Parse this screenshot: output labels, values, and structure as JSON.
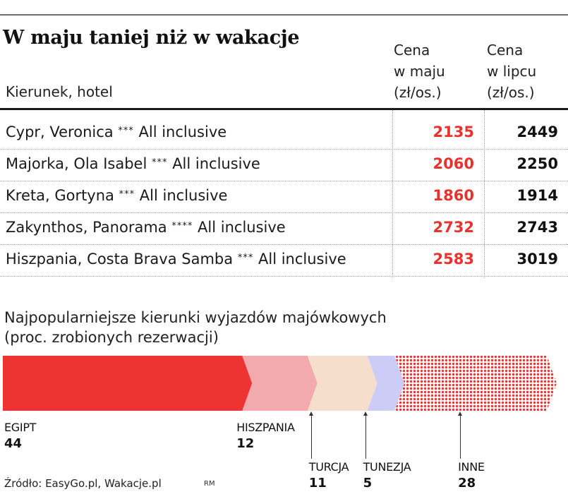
{
  "title": "W maju taniej niż w wakacje",
  "table": {
    "column_label": "Kierunek, hotel",
    "may_header": [
      "Cena",
      "w maju",
      "(zł/os.)"
    ],
    "july_header": [
      "Cena",
      "w lipcu",
      "(zł/os.)"
    ],
    "rows": [
      {
        "name": "Cypr, Veronica",
        "stars": "***",
        "board": "All inclusive",
        "may": "2135",
        "july": "2449"
      },
      {
        "name": "Majorka, Ola Isabel",
        "stars": "***",
        "board": "All inclusive",
        "may": "2060",
        "july": "2250"
      },
      {
        "name": "Kreta, Gortyna",
        "stars": "***",
        "board": "All inclusive",
        "may": "1860",
        "july": "1914"
      },
      {
        "name": "Zakynthos, Panorama",
        "stars": "****",
        "board": "All inclusive",
        "may": "2732",
        "july": "2743"
      },
      {
        "name": "Hiszpania, Costa Brava Samba",
        "stars": "***",
        "board": "All inclusive",
        "may": "2583",
        "july": "3019"
      }
    ]
  },
  "chart_data": {
    "type": "bar",
    "subtype": "stacked-100",
    "title": "Najpopularniejsze kierunki wyjazdów majówkowych",
    "subtitle": "(proc. zrobionych rezerwacji)",
    "categories": [
      "EGIPT",
      "HISZPANIA",
      "TURCJA",
      "TUNEZJA",
      "INNE"
    ],
    "values": [
      44,
      12,
      11,
      5,
      28
    ],
    "colors": [
      "#ee3333",
      "#f2aaae",
      "#f5dfcc",
      "#cccdf6",
      "#ee3838"
    ],
    "xlabel": "",
    "ylabel": ""
  },
  "source": "Źródło: EasyGo.pl, Wakacje.pl",
  "author": "RM"
}
